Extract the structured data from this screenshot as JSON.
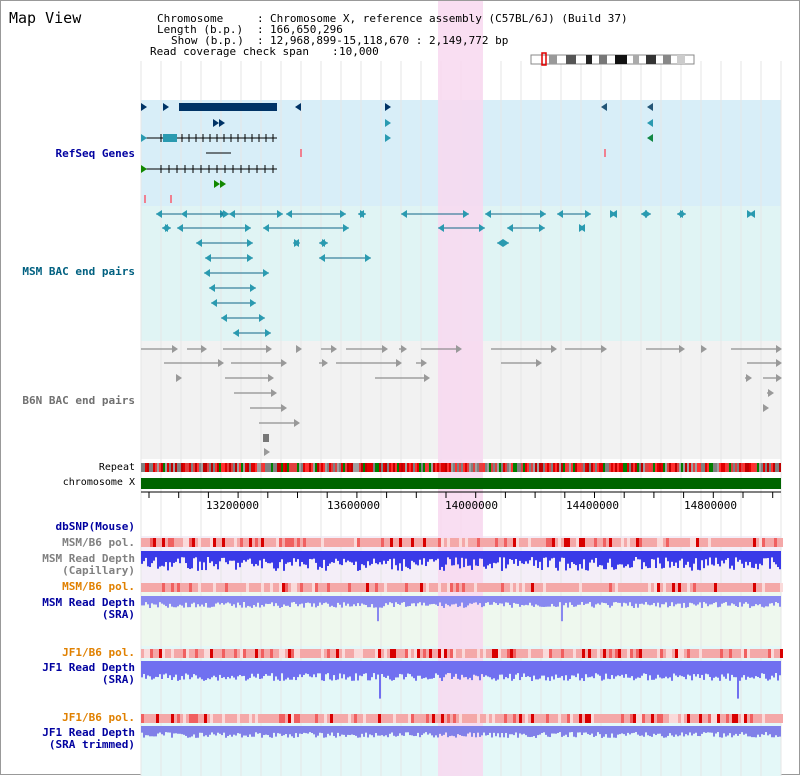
{
  "title": "Map View",
  "info": {
    "chromosome_label": "Chromosome",
    "chromosome_value": "Chromosome X, reference assembly (C57BL/6J) (Build 37)",
    "length_label": "Length (b.p.)",
    "length_value": "166,650,296",
    "show_label": "Show (b.p.)",
    "show_value": "12,968,899-15,118,670 : 2,149,772 bp",
    "read_label": "Read coverage check span",
    "read_value": "10,000"
  },
  "tracks": {
    "refseq": "RefSeq Genes",
    "msm_bac": "MSM BAC end pairs",
    "b6n_bac": "B6N BAC end pairs",
    "repeat": "Repeat",
    "chromosome": "chromosome X",
    "dbsnp": "dbSNP(Mouse)",
    "msm_b6_pol_1": "MSM/B6 pol.",
    "msm_depth_cap_1": "MSM Read Depth",
    "msm_depth_cap_2": "(Capillary)",
    "msm_b6_pol_2": "MSM/B6 pol.",
    "msm_depth_sra_1": "MSM Read Depth",
    "msm_depth_sra_2": "(SRA)",
    "jf1_b6_pol_1": "JF1/B6 pol.",
    "jf1_depth_sra_1": "JF1 Read Depth",
    "jf1_depth_sra_2": "(SRA)",
    "jf1_b6_pol_2": "JF1/B6 pol.",
    "jf1_depth_trim_1": "JF1 Read Depth",
    "jf1_depth_trim_2": "(SRA trimmed)"
  },
  "axis_ticks": [
    "13200000",
    "13600000",
    "14000000",
    "14400000",
    "14800000"
  ],
  "colors": {
    "refseq_label": "#0000a0",
    "msm_bac_label": "#006080",
    "b6n_bac_label": "#606060",
    "msm_pol_label": "#808080",
    "msm_sra_pol_label": "#e08000",
    "dbsnp_label": "#0000a0",
    "highlight": "#f8d8f0",
    "chromosome_bar": "#006400",
    "refseq_bg": "#d8eef8",
    "bac_bg": "#e0f4f4",
    "b6n_bg": "#f2f2f2"
  }
}
